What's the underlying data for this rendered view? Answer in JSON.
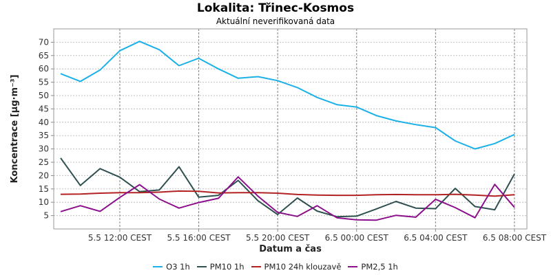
{
  "chart_data": {
    "type": "line",
    "title": "Lokalita: Třinec-Kosmos",
    "subtitle": "Aktuální neverifikovaná data",
    "xlabel": "Datum a čas",
    "ylabel": "Koncentrace [µg·m⁻³]",
    "ylim": [
      0,
      75
    ],
    "yticks": [
      5,
      10,
      15,
      20,
      25,
      30,
      35,
      40,
      45,
      50,
      55,
      60,
      65,
      70
    ],
    "x": [
      "5.5 09:00 CEST",
      "5.5 10:00 CEST",
      "5.5 11:00 CEST",
      "5.5 12:00 CEST",
      "5.5 13:00 CEST",
      "5.5 14:00 CEST",
      "5.5 15:00 CEST",
      "5.5 16:00 CEST",
      "5.5 17:00 CEST",
      "5.5 18:00 CEST",
      "5.5 19:00 CEST",
      "5.5 20:00 CEST",
      "5.5 21:00 CEST",
      "5.5 22:00 CEST",
      "5.5 23:00 CEST",
      "6.5 00:00 CEST",
      "6.5 01:00 CEST",
      "6.5 02:00 CEST",
      "6.5 03:00 CEST",
      "6.5 04:00 CEST",
      "6.5 05:00 CEST",
      "6.5 06:00 CEST",
      "6.5 07:00 CEST",
      "6.5 08:00 CEST"
    ],
    "xtick_labels": [
      "5.5 12:00 CEST",
      "5.5 16:00 CEST",
      "5.5 20:00 CEST",
      "6.5 00:00 CEST",
      "6.5 04:00 CEST",
      "6.5 08:00 CEST"
    ],
    "grid": true,
    "legend_position": "bottom",
    "series": [
      {
        "name": "O3 1h",
        "color": "#1ab0e8",
        "values": [
          58.2,
          55.3,
          59.6,
          66.8,
          70.3,
          67.2,
          61.2,
          64.0,
          60.0,
          56.5,
          57.1,
          55.6,
          53.0,
          49.3,
          46.6,
          45.7,
          42.5,
          40.5,
          39.1,
          38.0,
          33.0,
          30.0,
          32.0,
          35.4
        ]
      },
      {
        "name": "PM10 1h",
        "color": "#2f4f4f",
        "values": [
          26.6,
          16.3,
          22.6,
          19.4,
          14.0,
          14.6,
          23.3,
          11.9,
          12.6,
          18.2,
          10.6,
          5.4,
          11.6,
          6.7,
          4.6,
          4.8,
          7.5,
          10.3,
          7.8,
          7.6,
          15.2,
          8.4,
          7.2,
          20.6
        ]
      },
      {
        "name": "PM10 24h klouzavě",
        "color": "#b22222",
        "values": [
          13.0,
          13.1,
          13.4,
          13.6,
          13.6,
          13.8,
          14.2,
          14.1,
          13.5,
          13.6,
          13.6,
          13.4,
          12.9,
          12.7,
          12.6,
          12.6,
          12.8,
          12.9,
          12.8,
          12.8,
          13.0,
          12.7,
          12.3,
          12.8
        ]
      },
      {
        "name": "PM2,5 1h",
        "color": "#8b0f8b",
        "values": [
          6.5,
          8.7,
          6.6,
          11.8,
          16.6,
          11.2,
          7.8,
          9.9,
          11.5,
          19.5,
          12.3,
          6.2,
          4.7,
          8.7,
          4.2,
          3.4,
          3.3,
          5.1,
          4.4,
          11.1,
          8.0,
          4.2,
          16.7,
          8.1
        ]
      }
    ]
  }
}
